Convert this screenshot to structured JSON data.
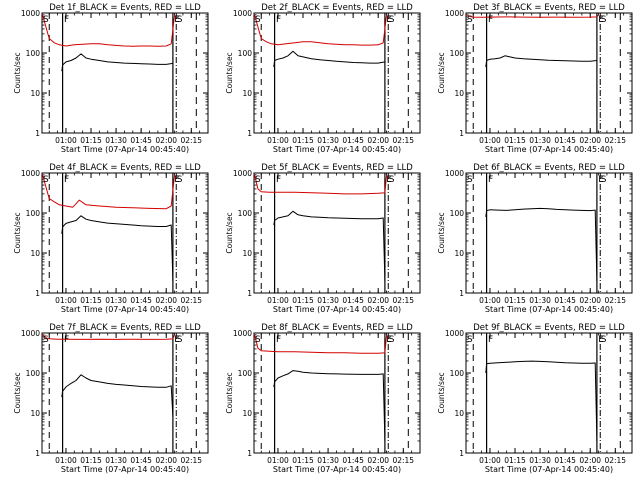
{
  "chart_data": [
    {
      "type": "line",
      "title": "Det 1f_BLACK = Events, RED = LLD",
      "xlabel": "Start Time (07-Apr-14 00:45:40)",
      "ylabel": "Counts/sec",
      "y_scale": "log",
      "ylim": [
        1,
        1000
      ],
      "y_ticks": [
        "1",
        "10",
        "100",
        "1000"
      ],
      "x_ticks": [
        "01:00",
        "01:15",
        "01:30",
        "01:45",
        "02:00",
        "02:15"
      ],
      "xlim": [
        "00:45:40",
        "02:25"
      ],
      "markers": [
        "S",
        "F",
        "E",
        "S"
      ],
      "series": [
        {
          "color": "#000000",
          "x": [
            "00:57:30",
            "00:58",
            "01:00",
            "01:03",
            "01:06",
            "01:09",
            "01:12",
            "01:15",
            "01:20",
            "01:25",
            "01:30",
            "01:35",
            "01:40",
            "01:45",
            "01:50",
            "01:55",
            "02:00",
            "02:04"
          ],
          "y": [
            35,
            50,
            60,
            65,
            75,
            95,
            75,
            70,
            65,
            60,
            58,
            56,
            55,
            54,
            53,
            52,
            52,
            55
          ]
        },
        {
          "color": "#d40000",
          "x": [
            "00:46",
            "00:48",
            "00:50",
            "00:53",
            "00:56",
            "01:00",
            "01:05",
            "01:10",
            "01:15",
            "01:20",
            "01:25",
            "01:30",
            "01:35",
            "01:40",
            "01:45",
            "01:50",
            "01:55",
            "02:00",
            "02:03",
            "02:05"
          ],
          "y": [
            900,
            450,
            230,
            180,
            160,
            150,
            160,
            165,
            170,
            170,
            160,
            155,
            150,
            148,
            150,
            150,
            148,
            150,
            170,
            900
          ]
        }
      ]
    },
    {
      "type": "line",
      "title": "Det 2f_BLACK = Events, RED = LLD",
      "xlabel": "Start Time (07-Apr-14 00:45:40)",
      "ylabel": "Counts/sec",
      "y_scale": "log",
      "ylim": [
        1,
        1000
      ],
      "y_ticks": [
        "1",
        "10",
        "100",
        "1000"
      ],
      "x_ticks": [
        "01:00",
        "01:15",
        "01:30",
        "01:45",
        "02:00",
        "02:15"
      ],
      "xlim": [
        "00:45:40",
        "02:25"
      ],
      "markers": [
        "S",
        "F",
        "E",
        "S"
      ],
      "series": [
        {
          "color": "#000000",
          "x": [
            "00:57:30",
            "00:58",
            "01:00",
            "01:03",
            "01:06",
            "01:09",
            "01:12",
            "01:15",
            "01:20",
            "01:25",
            "01:30",
            "01:35",
            "01:40",
            "01:45",
            "01:50",
            "01:55",
            "02:00",
            "02:04"
          ],
          "y": [
            45,
            65,
            70,
            75,
            85,
            110,
            85,
            80,
            72,
            68,
            65,
            62,
            60,
            58,
            57,
            56,
            56,
            60
          ]
        },
        {
          "color": "#d40000",
          "x": [
            "00:46",
            "00:48",
            "00:50",
            "00:53",
            "00:56",
            "01:00",
            "01:05",
            "01:10",
            "01:15",
            "01:20",
            "01:25",
            "01:30",
            "01:35",
            "01:40",
            "01:45",
            "01:50",
            "01:55",
            "02:00",
            "02:03",
            "02:05"
          ],
          "y": [
            900,
            450,
            230,
            190,
            170,
            160,
            170,
            180,
            190,
            190,
            180,
            170,
            165,
            160,
            160,
            158,
            158,
            160,
            180,
            900
          ]
        }
      ]
    },
    {
      "type": "line",
      "title": "Det 3f_BLACK = Events, RED = LLD",
      "xlabel": "Start Time (07-Apr-14 00:45:40)",
      "ylabel": "Counts/sec",
      "y_scale": "log",
      "ylim": [
        1,
        1000
      ],
      "y_ticks": [
        "1",
        "10",
        "100",
        "1000"
      ],
      "x_ticks": [
        "01:00",
        "01:15",
        "01:30",
        "01:45",
        "02:00",
        "02:15"
      ],
      "xlim": [
        "00:45:40",
        "02:25"
      ],
      "markers": [
        "S",
        "F",
        "E",
        "S"
      ],
      "series": [
        {
          "color": "#000000",
          "x": [
            "00:57:30",
            "00:58",
            "01:00",
            "01:03",
            "01:06",
            "01:09",
            "01:12",
            "01:15",
            "01:20",
            "01:25",
            "01:30",
            "01:35",
            "01:40",
            "01:45",
            "01:50",
            "01:55",
            "02:00",
            "02:04"
          ],
          "y": [
            45,
            65,
            70,
            72,
            75,
            85,
            80,
            75,
            72,
            70,
            68,
            66,
            65,
            64,
            63,
            62,
            62,
            65
          ]
        },
        {
          "color": "#d40000",
          "x": [
            "00:46",
            "00:48",
            "00:50",
            "00:55",
            "01:00",
            "01:10",
            "01:20",
            "01:30",
            "01:40",
            "01:50",
            "02:00",
            "02:04",
            "02:05"
          ],
          "y": [
            900,
            820,
            790,
            780,
            790,
            800,
            790,
            785,
            790,
            785,
            790,
            800,
            900
          ]
        }
      ]
    },
    {
      "type": "line",
      "title": "Det 4f_BLACK = Events, RED = LLD",
      "xlabel": "Start Time (07-Apr-14 00:45:40)",
      "ylabel": "Counts/sec",
      "y_scale": "log",
      "ylim": [
        1,
        1000
      ],
      "y_ticks": [
        "1",
        "10",
        "100",
        "1000"
      ],
      "x_ticks": [
        "01:00",
        "01:15",
        "01:30",
        "01:45",
        "02:00",
        "02:15"
      ],
      "xlim": [
        "00:45:40",
        "02:25"
      ],
      "markers": [
        "S",
        "F",
        "E",
        "S"
      ],
      "series": [
        {
          "color": "#000000",
          "x": [
            "00:57:30",
            "00:58",
            "01:00",
            "01:03",
            "01:06",
            "01:09",
            "01:12",
            "01:15",
            "01:20",
            "01:25",
            "01:30",
            "01:35",
            "01:40",
            "01:45",
            "01:50",
            "01:55",
            "02:00",
            "02:03",
            "02:04"
          ],
          "y": [
            30,
            45,
            55,
            60,
            65,
            85,
            70,
            65,
            60,
            56,
            54,
            52,
            50,
            48,
            47,
            46,
            46,
            50,
            2
          ]
        },
        {
          "color": "#d40000",
          "x": [
            "00:46",
            "00:48",
            "00:50",
            "00:53",
            "00:56",
            "01:00",
            "01:04",
            "01:06",
            "01:08",
            "01:12",
            "01:20",
            "01:30",
            "01:40",
            "01:50",
            "02:00",
            "02:03",
            "02:05"
          ],
          "y": [
            900,
            450,
            230,
            190,
            160,
            150,
            140,
            170,
            210,
            160,
            150,
            140,
            135,
            130,
            128,
            150,
            900
          ]
        }
      ]
    },
    {
      "type": "line",
      "title": "Det 5f_BLACK = Events, RED = LLD",
      "xlabel": "Start Time (07-Apr-14 00:45:40)",
      "ylabel": "Counts/sec",
      "y_scale": "log",
      "ylim": [
        1,
        1000
      ],
      "y_ticks": [
        "1",
        "10",
        "100",
        "1000"
      ],
      "x_ticks": [
        "01:00",
        "01:15",
        "01:30",
        "01:45",
        "02:00",
        "02:15"
      ],
      "xlim": [
        "00:45:40",
        "02:25"
      ],
      "markers": [
        "S",
        "F",
        "E",
        "S"
      ],
      "series": [
        {
          "color": "#000000",
          "x": [
            "00:57:30",
            "00:58",
            "01:00",
            "01:03",
            "01:06",
            "01:09",
            "01:12",
            "01:15",
            "01:20",
            "01:25",
            "01:30",
            "01:35",
            "01:40",
            "01:45",
            "01:50",
            "01:55",
            "02:00",
            "02:03",
            "02:04"
          ],
          "y": [
            50,
            65,
            75,
            80,
            85,
            110,
            90,
            85,
            80,
            78,
            76,
            75,
            74,
            73,
            72,
            72,
            72,
            75,
            2
          ]
        },
        {
          "color": "#d40000",
          "x": [
            "00:46",
            "00:48",
            "00:50",
            "00:55",
            "01:00",
            "01:10",
            "01:20",
            "01:30",
            "01:40",
            "01:50",
            "02:00",
            "02:04",
            "02:05"
          ],
          "y": [
            900,
            400,
            340,
            330,
            330,
            330,
            320,
            310,
            300,
            300,
            310,
            320,
            900
          ]
        }
      ]
    },
    {
      "type": "line",
      "title": "Det 6f_BLACK = Events, RED = LLD",
      "xlabel": "Start Time (07-Apr-14 00:45:40)",
      "ylabel": "Counts/sec",
      "y_scale": "log",
      "ylim": [
        1,
        1000
      ],
      "y_ticks": [
        "1",
        "10",
        "100",
        "1000"
      ],
      "x_ticks": [
        "01:00",
        "01:15",
        "01:30",
        "01:45",
        "02:00",
        "02:15"
      ],
      "xlim": [
        "00:45:40",
        "02:25"
      ],
      "markers": [
        "S",
        "F",
        "E",
        "S"
      ],
      "series": [
        {
          "color": "#000000",
          "x": [
            "00:57:30",
            "00:58",
            "01:00",
            "01:05",
            "01:10",
            "01:15",
            "01:20",
            "01:25",
            "01:30",
            "01:35",
            "01:40",
            "01:45",
            "01:50",
            "01:55",
            "02:00",
            "02:03",
            "02:04"
          ],
          "y": [
            80,
            115,
            120,
            118,
            116,
            120,
            125,
            128,
            130,
            127,
            123,
            120,
            118,
            116,
            115,
            118,
            2
          ]
        }
      ]
    },
    {
      "type": "line",
      "title": "Det 7f_BLACK = Events, RED = LLD",
      "xlabel": "Start Time (07-Apr-14 00:45:40)",
      "ylabel": "Counts/sec",
      "y_scale": "log",
      "ylim": [
        1,
        1000
      ],
      "y_ticks": [
        "1",
        "10",
        "100",
        "1000"
      ],
      "x_ticks": [
        "01:00",
        "01:15",
        "01:30",
        "01:45",
        "02:00",
        "02:15"
      ],
      "xlim": [
        "00:45:40",
        "02:25"
      ],
      "markers": [
        "S",
        "F",
        "E",
        "S"
      ],
      "series": [
        {
          "color": "#000000",
          "x": [
            "00:57:30",
            "00:58",
            "01:00",
            "01:03",
            "01:06",
            "01:09",
            "01:12",
            "01:15",
            "01:20",
            "01:25",
            "01:30",
            "01:35",
            "01:40",
            "01:45",
            "01:50",
            "01:55",
            "02:00",
            "02:03",
            "02:04"
          ],
          "y": [
            25,
            35,
            45,
            55,
            65,
            90,
            75,
            65,
            60,
            55,
            52,
            50,
            48,
            46,
            45,
            44,
            44,
            48,
            8
          ]
        },
        {
          "color": "#d40000",
          "x": [
            "00:46",
            "00:48",
            "00:50",
            "00:55",
            "01:00",
            "01:10",
            "01:20",
            "01:30",
            "01:40",
            "01:50",
            "02:00",
            "02:04",
            "02:05"
          ],
          "y": [
            900,
            760,
            720,
            700,
            700,
            690,
            700,
            690,
            700,
            690,
            700,
            710,
            900
          ]
        }
      ]
    },
    {
      "type": "line",
      "title": "Det 8f_BLACK = Events, RED = LLD",
      "xlabel": "Start Time (07-Apr-14 00:45:40)",
      "ylabel": "Counts/sec",
      "y_scale": "log",
      "ylim": [
        1,
        1000
      ],
      "y_ticks": [
        "1",
        "10",
        "100",
        "1000"
      ],
      "x_ticks": [
        "01:00",
        "01:15",
        "01:30",
        "01:45",
        "02:00",
        "02:15"
      ],
      "xlim": [
        "00:45:40",
        "02:25"
      ],
      "markers": [
        "S",
        "F",
        "E",
        "S"
      ],
      "series": [
        {
          "color": "#000000",
          "x": [
            "00:57:30",
            "00:58",
            "01:00",
            "01:03",
            "01:06",
            "01:09",
            "01:12",
            "01:15",
            "01:20",
            "01:25",
            "01:30",
            "01:35",
            "01:40",
            "01:45",
            "01:50",
            "01:55",
            "02:00",
            "02:03",
            "02:04"
          ],
          "y": [
            45,
            60,
            75,
            85,
            95,
            115,
            110,
            105,
            100,
            98,
            96,
            95,
            94,
            93,
            92,
            92,
            92,
            95,
            2
          ]
        },
        {
          "color": "#d40000",
          "x": [
            "00:46",
            "00:48",
            "00:50",
            "00:55",
            "01:00",
            "01:10",
            "01:20",
            "01:30",
            "01:40",
            "01:50",
            "02:00",
            "02:04",
            "02:05"
          ],
          "y": [
            900,
            420,
            360,
            350,
            340,
            340,
            330,
            320,
            320,
            310,
            310,
            320,
            900
          ]
        }
      ]
    },
    {
      "type": "line",
      "title": "Det 9f_BLACK = Events, RED = LLD",
      "xlabel": "Start Time (07-Apr-14 00:45:40)",
      "ylabel": "Counts/sec",
      "y_scale": "log",
      "ylim": [
        1,
        1000
      ],
      "y_ticks": [
        "1",
        "10",
        "100",
        "1000"
      ],
      "x_ticks": [
        "01:00",
        "01:15",
        "01:30",
        "01:45",
        "02:00",
        "02:15"
      ],
      "xlim": [
        "00:45:40",
        "02:25"
      ],
      "markers": [
        "S",
        "F",
        "E",
        "S"
      ],
      "series": [
        {
          "color": "#000000",
          "x": [
            "00:57:30",
            "00:58",
            "01:00",
            "01:05",
            "01:10",
            "01:15",
            "01:20",
            "01:25",
            "01:30",
            "01:35",
            "01:40",
            "01:45",
            "01:50",
            "01:55",
            "02:00",
            "02:03",
            "02:04"
          ],
          "y": [
            100,
            170,
            175,
            180,
            185,
            190,
            195,
            198,
            195,
            190,
            185,
            180,
            178,
            176,
            175,
            178,
            2
          ]
        }
      ]
    }
  ]
}
